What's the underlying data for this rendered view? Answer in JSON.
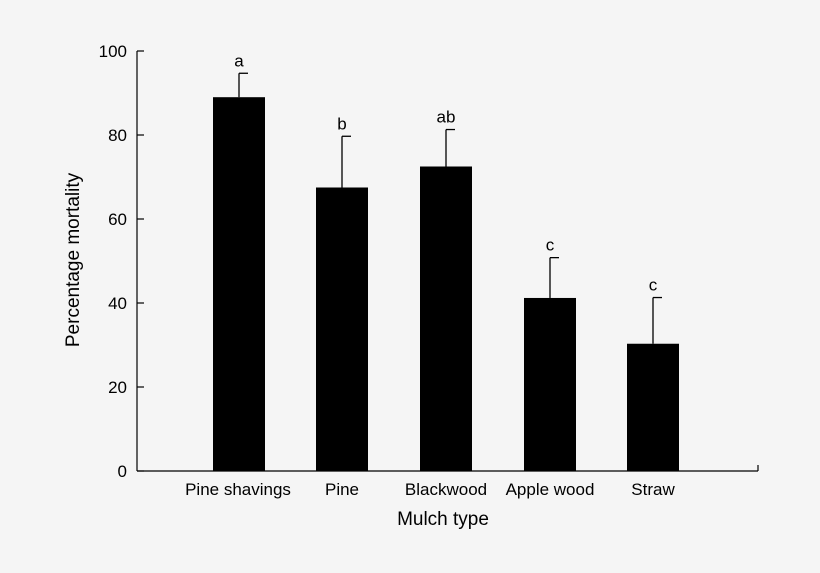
{
  "chart_data": {
    "type": "bar",
    "title": "",
    "xlabel": "Mulch type",
    "ylabel": "Percentage mortality",
    "ylim": [
      0,
      100
    ],
    "yticks": [
      0,
      20,
      40,
      60,
      80,
      100
    ],
    "categories": [
      "Pine shavings",
      "Pine",
      "Blackwood",
      "Apple wood",
      "Straw"
    ],
    "values": [
      89,
      67.5,
      72.5,
      41.2,
      30.3
    ],
    "error_upper": [
      94.7,
      79.7,
      81.3,
      50.8,
      41.3
    ],
    "significance_labels": [
      "a",
      "b",
      "ab",
      "c",
      "c"
    ],
    "bar_color": "#000000",
    "grid": false,
    "legend": "none"
  }
}
